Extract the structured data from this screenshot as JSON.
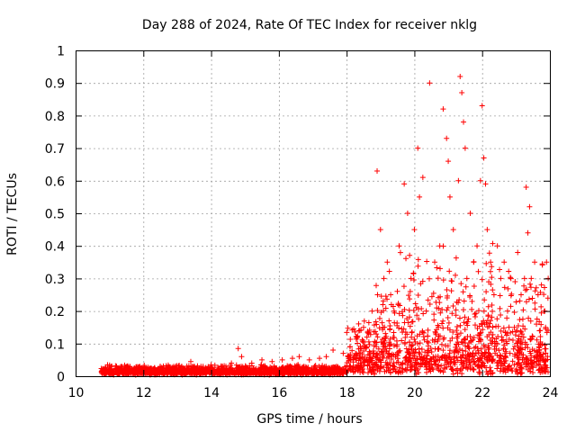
{
  "chart_data": {
    "type": "scatter",
    "title": "Day 288 of 2024, Rate Of TEC Index for receiver nklg",
    "xlabel": "GPS time / hours",
    "ylabel": "ROTI / TECUs",
    "xlim": [
      10,
      24
    ],
    "ylim": [
      0,
      1
    ],
    "x_ticks": [
      "10",
      "12",
      "14",
      "16",
      "18",
      "20",
      "22",
      "24"
    ],
    "y_ticks": [
      "0",
      "0.1",
      "0.2",
      "0.3",
      "0.4",
      "0.5",
      "0.6",
      "0.7",
      "0.8",
      "0.9",
      "1"
    ],
    "grid": true,
    "marker": "+",
    "color": "#ff0000",
    "series": [
      {
        "x": [
          10.8,
          11.0,
          11.3,
          11.6,
          11.9,
          12.2,
          12.5,
          12.8,
          13.1,
          13.4,
          13.7,
          14.0,
          14.3,
          14.6,
          14.8,
          14.9,
          15.2,
          15.5,
          15.8,
          16.1,
          16.4,
          16.6,
          16.9,
          17.2,
          17.4,
          17.6,
          17.9,
          18.1,
          18.3,
          18.5,
          18.6,
          18.75,
          18.9,
          19.0,
          19.1,
          19.2,
          19.3,
          19.4,
          19.55,
          19.7,
          19.8,
          19.9,
          20.0,
          20.1,
          20.15,
          20.25,
          20.35,
          20.45,
          20.6,
          20.75,
          20.85,
          20.95,
          21.0,
          21.05,
          21.15,
          21.3,
          21.35,
          21.4,
          21.45,
          21.5,
          21.55,
          21.65,
          21.75,
          21.85,
          21.95,
          22.0,
          22.05,
          22.1,
          22.15,
          22.25,
          22.35,
          22.45,
          22.55,
          22.65,
          22.75,
          22.85,
          22.95,
          23.05,
          23.15,
          23.25,
          23.3,
          23.35,
          23.4,
          23.45,
          23.55,
          23.65,
          23.75,
          23.85,
          23.9,
          23.95
        ],
        "y": [
          0.02,
          0.03,
          0.02,
          0.03,
          0.02,
          0.025,
          0.03,
          0.02,
          0.025,
          0.045,
          0.03,
          0.035,
          0.03,
          0.04,
          0.085,
          0.06,
          0.04,
          0.05,
          0.045,
          0.05,
          0.055,
          0.06,
          0.05,
          0.055,
          0.06,
          0.08,
          0.07,
          0.09,
          0.12,
          0.15,
          0.12,
          0.2,
          0.63,
          0.45,
          0.3,
          0.35,
          0.25,
          0.2,
          0.4,
          0.59,
          0.5,
          0.3,
          0.45,
          0.7,
          0.55,
          0.61,
          0.2,
          0.9,
          0.35,
          0.4,
          0.82,
          0.73,
          0.66,
          0.55,
          0.45,
          0.6,
          0.92,
          0.87,
          0.78,
          0.7,
          0.3,
          0.5,
          0.35,
          0.4,
          0.6,
          0.83,
          0.67,
          0.59,
          0.45,
          0.35,
          0.25,
          0.4,
          0.3,
          0.35,
          0.2,
          0.3,
          0.15,
          0.38,
          0.25,
          0.3,
          0.58,
          0.44,
          0.52,
          0.3,
          0.35,
          0.25,
          0.28,
          0.2,
          0.35,
          0.3
        ]
      }
    ]
  }
}
